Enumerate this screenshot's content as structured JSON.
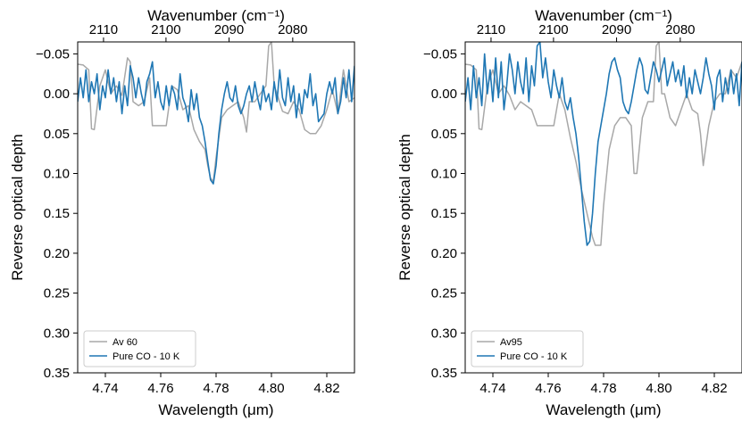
{
  "chart_data": [
    {
      "type": "line",
      "xlabel": "Wavelength (μm)",
      "ylabel": "Reverse optical depth",
      "top_xlabel": "Wavenumber (cm⁻¹)",
      "xlim": [
        4.73,
        4.83
      ],
      "ylim": [
        0.35,
        -0.065
      ],
      "y_inverted": true,
      "xticks": [
        4.74,
        4.76,
        4.78,
        4.8,
        4.82
      ],
      "xtick_labels": [
        "4.74",
        "4.76",
        "4.78",
        "4.80",
        "4.82"
      ],
      "yticks": [
        -0.05,
        0.0,
        0.05,
        0.1,
        0.15,
        0.2,
        0.25,
        0.3,
        0.35
      ],
      "ytick_labels": [
        "−0.05",
        "0.00",
        "0.05",
        "0.10",
        "0.15",
        "0.20",
        "0.25",
        "0.30",
        "0.35"
      ],
      "top_ticks": [
        2110,
        2100,
        2090,
        2080
      ],
      "top_tick_labels": [
        "2110",
        "2100",
        "2090",
        "2080"
      ],
      "grid": false,
      "legend_position": "lower-left",
      "series": [
        {
          "name": "Av 60",
          "color": "#a8a8a8",
          "x": [
            4.73,
            4.732,
            4.734,
            4.735,
            4.736,
            4.738,
            4.74,
            4.742,
            4.744,
            4.746,
            4.748,
            4.749,
            4.75,
            4.752,
            4.754,
            4.756,
            4.757,
            4.758,
            4.76,
            4.762,
            4.764,
            4.766,
            4.768,
            4.77,
            4.772,
            4.774,
            4.776,
            4.777,
            4.778,
            4.779,
            4.78,
            4.782,
            4.784,
            4.786,
            4.788,
            4.79,
            4.791,
            4.792,
            4.794,
            4.796,
            4.798,
            4.799,
            4.8,
            4.801,
            4.802,
            4.804,
            4.806,
            4.808,
            4.81,
            4.812,
            4.814,
            4.815,
            4.816,
            4.818,
            4.82,
            4.822,
            4.824,
            4.826,
            4.828,
            4.83
          ],
          "y": [
            -0.037,
            -0.036,
            -0.03,
            0.044,
            0.045,
            -0.01,
            -0.03,
            0.0,
            -0.01,
            0.002,
            -0.045,
            -0.04,
            0.01,
            0.015,
            0.01,
            -0.02,
            0.04,
            0.04,
            0.04,
            0.04,
            -0.01,
            -0.005,
            0.02,
            0.015,
            0.045,
            0.06,
            0.07,
            0.09,
            0.106,
            0.11,
            0.08,
            0.03,
            0.02,
            0.015,
            0.01,
            0.03,
            0.048,
            0.01,
            0.01,
            0.0,
            -0.01,
            -0.06,
            -0.065,
            -0.01,
            0.0,
            0.022,
            0.025,
            0.01,
            0.02,
            0.045,
            0.05,
            0.05,
            0.05,
            0.04,
            0.02,
            -0.005,
            0.025,
            -0.03,
            0.01,
            0.005
          ]
        },
        {
          "name": "Pure CO - 10 K",
          "color": "#1f77b4",
          "x": [
            4.73,
            4.731,
            4.732,
            4.733,
            4.734,
            4.735,
            4.736,
            4.737,
            4.738,
            4.739,
            4.74,
            4.741,
            4.742,
            4.743,
            4.744,
            4.745,
            4.746,
            4.747,
            4.748,
            4.749,
            4.75,
            4.751,
            4.752,
            4.753,
            4.754,
            4.755,
            4.756,
            4.757,
            4.758,
            4.759,
            4.76,
            4.761,
            4.762,
            4.763,
            4.764,
            4.765,
            4.766,
            4.767,
            4.768,
            4.769,
            4.77,
            4.771,
            4.772,
            4.773,
            4.774,
            4.775,
            4.776,
            4.777,
            4.778,
            4.779,
            4.78,
            4.781,
            4.782,
            4.783,
            4.784,
            4.785,
            4.786,
            4.787,
            4.788,
            4.789,
            4.79,
            4.791,
            4.792,
            4.793,
            4.794,
            4.795,
            4.796,
            4.797,
            4.798,
            4.799,
            4.8,
            4.801,
            4.802,
            4.803,
            4.804,
            4.805,
            4.806,
            4.807,
            4.808,
            4.809,
            4.81,
            4.811,
            4.812,
            4.813,
            4.814,
            4.815,
            4.816,
            4.817,
            4.818,
            4.819,
            4.82,
            4.821,
            4.822,
            4.823,
            4.824,
            4.825,
            4.826,
            4.827,
            4.828,
            4.829,
            4.83
          ],
          "y": [
            0.01,
            -0.02,
            0.005,
            -0.03,
            0.01,
            -0.015,
            0.0,
            -0.025,
            0.02,
            -0.01,
            0.005,
            -0.03,
            0.0,
            -0.02,
            0.01,
            -0.015,
            0.025,
            -0.01,
            0.015,
            -0.035,
            -0.02,
            0.005,
            -0.02,
            0.0,
            0.015,
            -0.015,
            -0.025,
            -0.04,
            0.005,
            -0.015,
            0.01,
            0.02,
            -0.01,
            0.015,
            -0.01,
            0.0,
            0.02,
            -0.025,
            0.005,
            0.015,
            0.035,
            -0.005,
            0.02,
            0.0,
            0.03,
            0.04,
            0.06,
            0.085,
            0.108,
            0.113,
            0.09,
            0.05,
            0.02,
            0.0,
            -0.015,
            0.005,
            0.01,
            -0.01,
            0.015,
            0.025,
            0.015,
            0.0,
            -0.01,
            0.01,
            -0.015,
            0.005,
            0.02,
            -0.01,
            0.01,
            0.0,
            0.02,
            -0.015,
            0.01,
            -0.03,
            0.005,
            0.015,
            -0.02,
            0.01,
            -0.01,
            0.03,
            0.0,
            0.025,
            -0.005,
            0.005,
            -0.025,
            0.015,
            0.0,
            0.035,
            0.03,
            0.025,
            0.0,
            -0.015,
            0.0,
            -0.02,
            0.025,
            0.01,
            -0.02,
            0.005,
            -0.03,
            0.01,
            -0.035
          ]
        }
      ]
    },
    {
      "type": "line",
      "xlabel": "Wavelength (μm)",
      "ylabel": "Reverse optical depth",
      "top_xlabel": "Wavenumber (cm⁻¹)",
      "xlim": [
        4.73,
        4.83
      ],
      "ylim": [
        0.35,
        -0.065
      ],
      "y_inverted": true,
      "xticks": [
        4.74,
        4.76,
        4.78,
        4.8,
        4.82
      ],
      "xtick_labels": [
        "4.74",
        "4.76",
        "4.78",
        "4.80",
        "4.82"
      ],
      "yticks": [
        -0.05,
        0.0,
        0.05,
        0.1,
        0.15,
        0.2,
        0.25,
        0.3,
        0.35
      ],
      "ytick_labels": [
        "−0.05",
        "0.00",
        "0.05",
        "0.10",
        "0.15",
        "0.20",
        "0.25",
        "0.30",
        "0.35"
      ],
      "top_ticks": [
        2110,
        2100,
        2090,
        2080
      ],
      "top_tick_labels": [
        "2110",
        "2100",
        "2090",
        "2080"
      ],
      "grid": false,
      "legend_position": "lower-left",
      "series": [
        {
          "name": "Av95",
          "color": "#a8a8a8",
          "x": [
            4.73,
            4.732,
            4.734,
            4.735,
            4.736,
            4.738,
            4.74,
            4.742,
            4.744,
            4.746,
            4.748,
            4.749,
            4.75,
            4.752,
            4.754,
            4.756,
            4.757,
            4.758,
            4.76,
            4.762,
            4.764,
            4.766,
            4.768,
            4.77,
            4.772,
            4.774,
            4.776,
            4.777,
            4.778,
            4.779,
            4.78,
            4.782,
            4.784,
            4.786,
            4.788,
            4.79,
            4.791,
            4.792,
            4.794,
            4.796,
            4.798,
            4.799,
            4.8,
            4.801,
            4.802,
            4.804,
            4.806,
            4.808,
            4.81,
            4.812,
            4.814,
            4.815,
            4.816,
            4.818,
            4.82,
            4.822,
            4.824,
            4.826,
            4.828,
            4.83
          ],
          "y": [
            -0.037,
            -0.036,
            -0.03,
            0.044,
            0.045,
            -0.01,
            -0.03,
            0.0,
            -0.01,
            0.002,
            0.02,
            0.015,
            0.01,
            0.015,
            0.02,
            0.04,
            0.04,
            0.04,
            0.04,
            0.04,
            0.0,
            0.02,
            0.055,
            0.085,
            0.12,
            0.15,
            0.18,
            0.19,
            0.19,
            0.19,
            0.14,
            0.07,
            0.04,
            0.03,
            0.03,
            0.04,
            0.1,
            0.1,
            0.03,
            0.01,
            0.01,
            -0.06,
            -0.065,
            0.0,
            0.0,
            0.03,
            0.04,
            0.02,
            0.0,
            0.02,
            0.025,
            0.05,
            0.09,
            0.04,
            0.01,
            0.0,
            0.0,
            -0.03,
            -0.02,
            -0.04
          ]
        },
        {
          "name": "Pure CO - 10 K",
          "color": "#1f77b4",
          "x": [
            4.73,
            4.731,
            4.732,
            4.733,
            4.734,
            4.735,
            4.736,
            4.737,
            4.738,
            4.739,
            4.74,
            4.741,
            4.742,
            4.743,
            4.744,
            4.745,
            4.746,
            4.747,
            4.748,
            4.749,
            4.75,
            4.751,
            4.752,
            4.753,
            4.754,
            4.755,
            4.756,
            4.757,
            4.758,
            4.759,
            4.76,
            4.761,
            4.762,
            4.763,
            4.764,
            4.765,
            4.766,
            4.767,
            4.768,
            4.769,
            4.77,
            4.771,
            4.772,
            4.773,
            4.774,
            4.775,
            4.776,
            4.777,
            4.778,
            4.779,
            4.78,
            4.781,
            4.782,
            4.783,
            4.784,
            4.785,
            4.786,
            4.787,
            4.788,
            4.789,
            4.79,
            4.791,
            4.792,
            4.793,
            4.794,
            4.795,
            4.796,
            4.797,
            4.798,
            4.799,
            4.8,
            4.801,
            4.802,
            4.803,
            4.804,
            4.805,
            4.806,
            4.807,
            4.808,
            4.809,
            4.81,
            4.811,
            4.812,
            4.813,
            4.814,
            4.815,
            4.816,
            4.817,
            4.818,
            4.819,
            4.82,
            4.821,
            4.822,
            4.823,
            4.824,
            4.825,
            4.826,
            4.827,
            4.828,
            4.829,
            4.83
          ],
          "y": [
            0.01,
            -0.02,
            0.02,
            -0.035,
            0.005,
            -0.02,
            0.015,
            -0.05,
            0.0,
            -0.03,
            0.01,
            -0.045,
            0.005,
            -0.04,
            0.02,
            -0.01,
            -0.05,
            -0.03,
            0.0,
            -0.04,
            -0.015,
            0.0,
            -0.045,
            0.01,
            -0.035,
            -0.01,
            -0.06,
            -0.065,
            -0.02,
            -0.045,
            -0.015,
            0.005,
            -0.03,
            -0.01,
            0.005,
            -0.02,
            0.01,
            0.02,
            0.005,
            0.03,
            0.05,
            0.08,
            0.12,
            0.16,
            0.19,
            0.185,
            0.15,
            0.1,
            0.06,
            0.04,
            0.02,
            0.0,
            -0.025,
            -0.04,
            -0.045,
            -0.03,
            -0.02,
            0.01,
            0.02,
            0.025,
            0.01,
            -0.01,
            -0.03,
            -0.045,
            -0.035,
            -0.005,
            0.0,
            -0.02,
            -0.04,
            -0.03,
            -0.015,
            -0.03,
            -0.045,
            -0.01,
            -0.025,
            -0.04,
            -0.015,
            -0.03,
            -0.01,
            -0.035,
            0.005,
            -0.02,
            0.0,
            -0.03,
            -0.015,
            0.0,
            -0.02,
            -0.045,
            -0.025,
            -0.01,
            0.02,
            -0.02,
            -0.03,
            0.01,
            -0.02,
            0.0,
            -0.03,
            0.0,
            -0.025,
            0.015,
            -0.04
          ]
        }
      ]
    }
  ]
}
